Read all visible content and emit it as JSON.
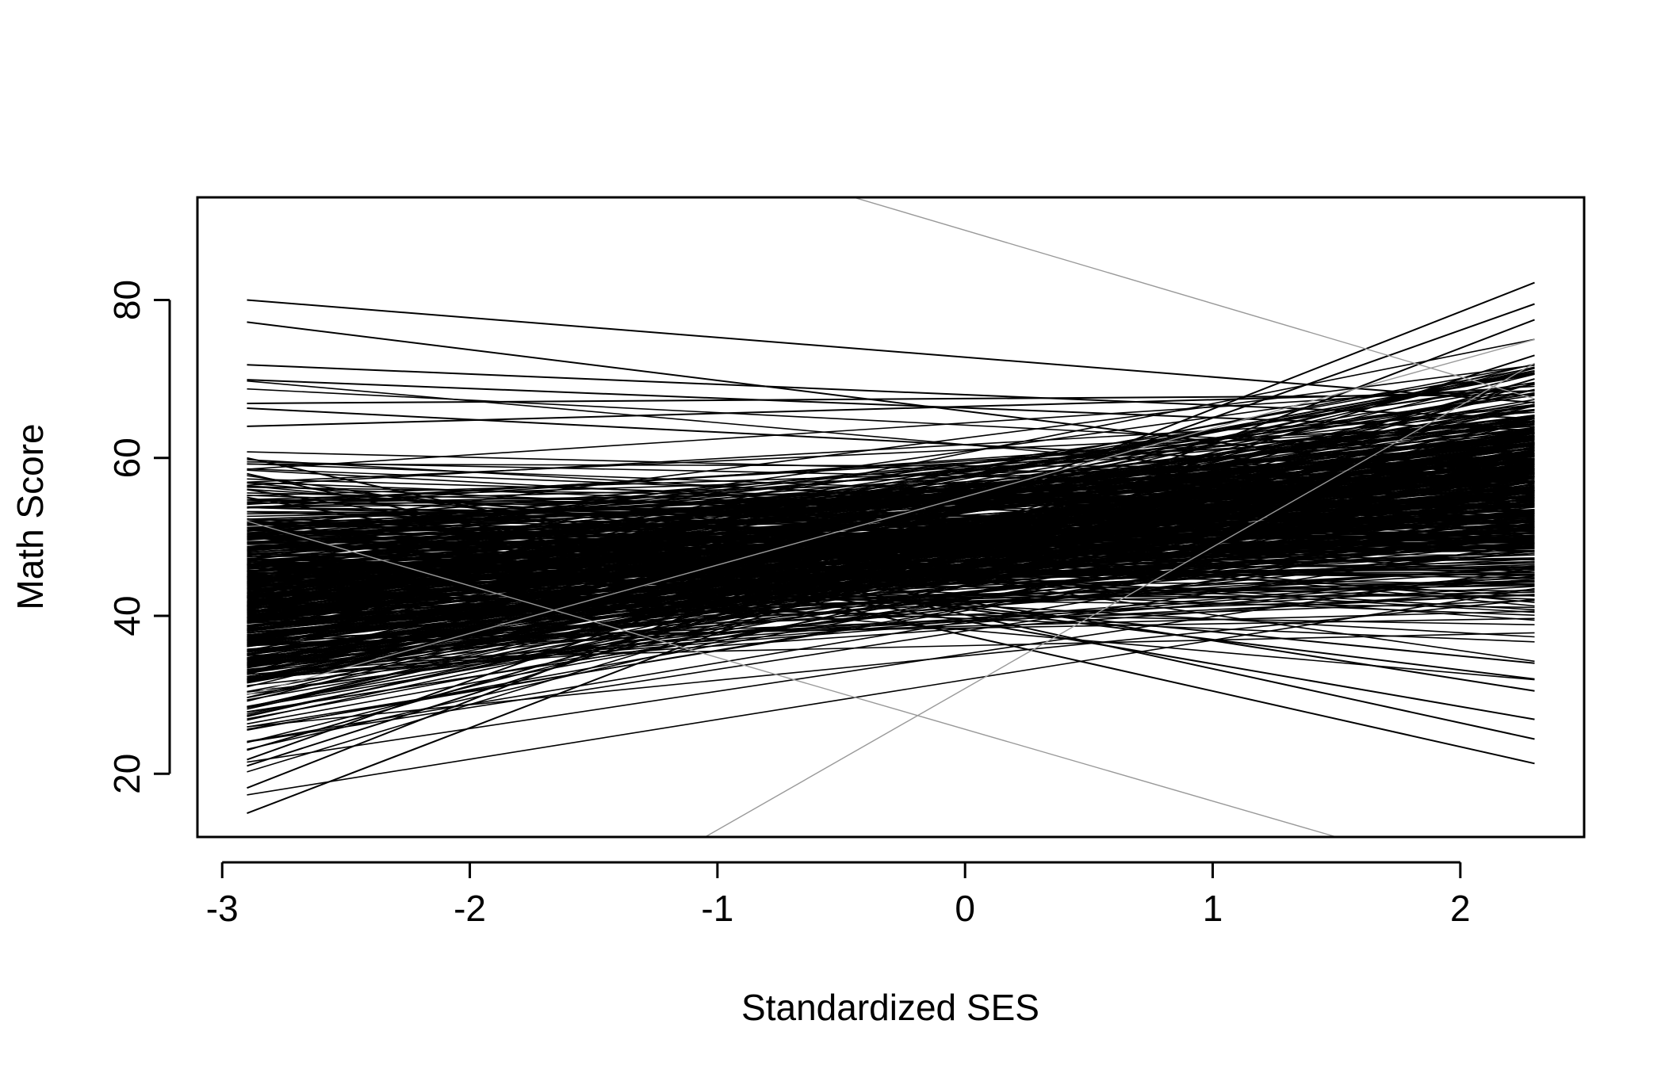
{
  "chart_data": {
    "type": "line",
    "title": "",
    "xlabel": "Standardized SES",
    "ylabel": "Math Score",
    "xlim": [
      -3.1,
      2.5
    ],
    "ylim": [
      12,
      93
    ],
    "x_ticks": [
      -3,
      -2,
      -1,
      0,
      1,
      2
    ],
    "x_tick_labels": [
      "-3",
      "-2",
      "-1",
      "0",
      "1",
      "2"
    ],
    "y_ticks": [
      20,
      40,
      60,
      80
    ],
    "y_tick_labels": [
      "20",
      "40",
      "60",
      "80"
    ],
    "grid": false,
    "legend": "none",
    "line_color": "#000000",
    "faint_line_color": "#999999",
    "description_of_series": "Per-group fitted regression lines of Math Score on Standardized SES, each drawn from x = -2.9 to x = 2.3",
    "x_start": -2.9,
    "x_end": 2.3,
    "series_count": 500,
    "highlighted_lines": [
      {
        "y_start": 80.0,
        "y_end": 67.0
      },
      {
        "y_start": 77.2,
        "y_end": 57.0
      },
      {
        "y_start": 71.8,
        "y_end": 65.0
      },
      {
        "y_start": 69.9,
        "y_end": 63.5
      },
      {
        "y_start": 66.9,
        "y_end": 68.0
      },
      {
        "y_start": 66.3,
        "y_end": 58.0
      },
      {
        "y_start": 64.0,
        "y_end": 68.5
      },
      {
        "y_start": 18.2,
        "y_end": 82.2
      },
      {
        "y_start": 15.0,
        "y_end": 77.5
      },
      {
        "y_start": 21.0,
        "y_end": 73.0
      },
      {
        "y_start": 21.8,
        "y_end": 79.5
      },
      {
        "y_start": 23.0,
        "y_end": 70.0
      },
      {
        "y_start": 58.0,
        "y_end": 21.3
      },
      {
        "y_start": 60.0,
        "y_end": 24.4
      },
      {
        "y_start": 55.0,
        "y_end": 26.9
      },
      {
        "y_start": 56.0,
        "y_end": 30.5
      },
      {
        "y_start": 52.0,
        "y_end": 32.0
      },
      {
        "y_start": 50.0,
        "y_end": 34.0
      }
    ],
    "faint_lines": [
      {
        "x1": -0.45,
        "y1": 93.0,
        "x2": 2.3,
        "y2": 67.5
      },
      {
        "x1": -1.05,
        "y1": 12.0,
        "x2": 2.3,
        "y2": 72.0
      },
      {
        "x1": -2.9,
        "y1": 52.0,
        "x2": 1.5,
        "y2": 12.0
      },
      {
        "x1": -2.9,
        "y1": 30.0,
        "x2": 2.3,
        "y2": 75.0
      }
    ]
  }
}
